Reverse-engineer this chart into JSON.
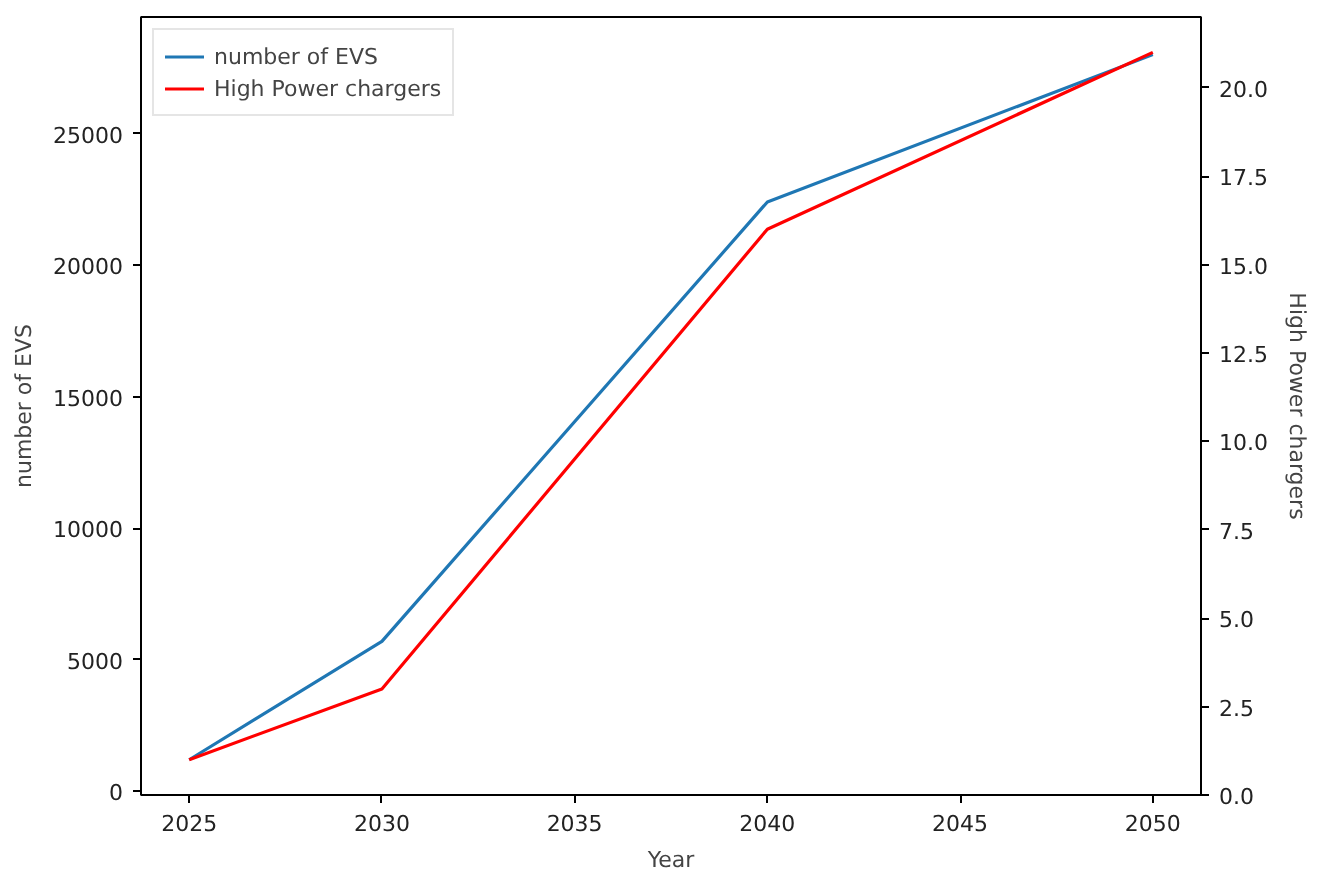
{
  "chart_data": {
    "type": "line",
    "xlabel": "Year",
    "ylabel": "number of EVS",
    "y2label": "High Power chargers",
    "x": [
      2025,
      2030,
      2040,
      2050
    ],
    "series": [
      {
        "name": "number of EVS",
        "color": "#1f77b4",
        "values": [
          1200,
          5700,
          22400,
          28000
        ]
      },
      {
        "name": "High Power chargers",
        "color": "#ff0000",
        "values": [
          1,
          3,
          16,
          21
        ],
        "axis": "y2"
      }
    ],
    "xlim": [
      2023.75,
      2051.25
    ],
    "xticks": [
      2025,
      2030,
      2035,
      2040,
      2045,
      2050
    ],
    "ylim": [
      -140,
      29430
    ],
    "yticks": [
      0,
      5000,
      10000,
      15000,
      20000,
      25000
    ],
    "y2lim": [
      0,
      22
    ],
    "y2ticks": [
      {
        "value": 0,
        "label": "0.0"
      },
      {
        "value": 2.5,
        "label": "2.5"
      },
      {
        "value": 5,
        "label": "5.0"
      },
      {
        "value": 7.5,
        "label": "7.5"
      },
      {
        "value": 10,
        "label": "10.0"
      },
      {
        "value": 12.5,
        "label": "12.5"
      },
      {
        "value": 15,
        "label": "15.0"
      },
      {
        "value": 17.5,
        "label": "17.5"
      },
      {
        "value": 20,
        "label": "20.0"
      }
    ],
    "legend": "top left",
    "grid": false,
    "line_style": "solid"
  }
}
